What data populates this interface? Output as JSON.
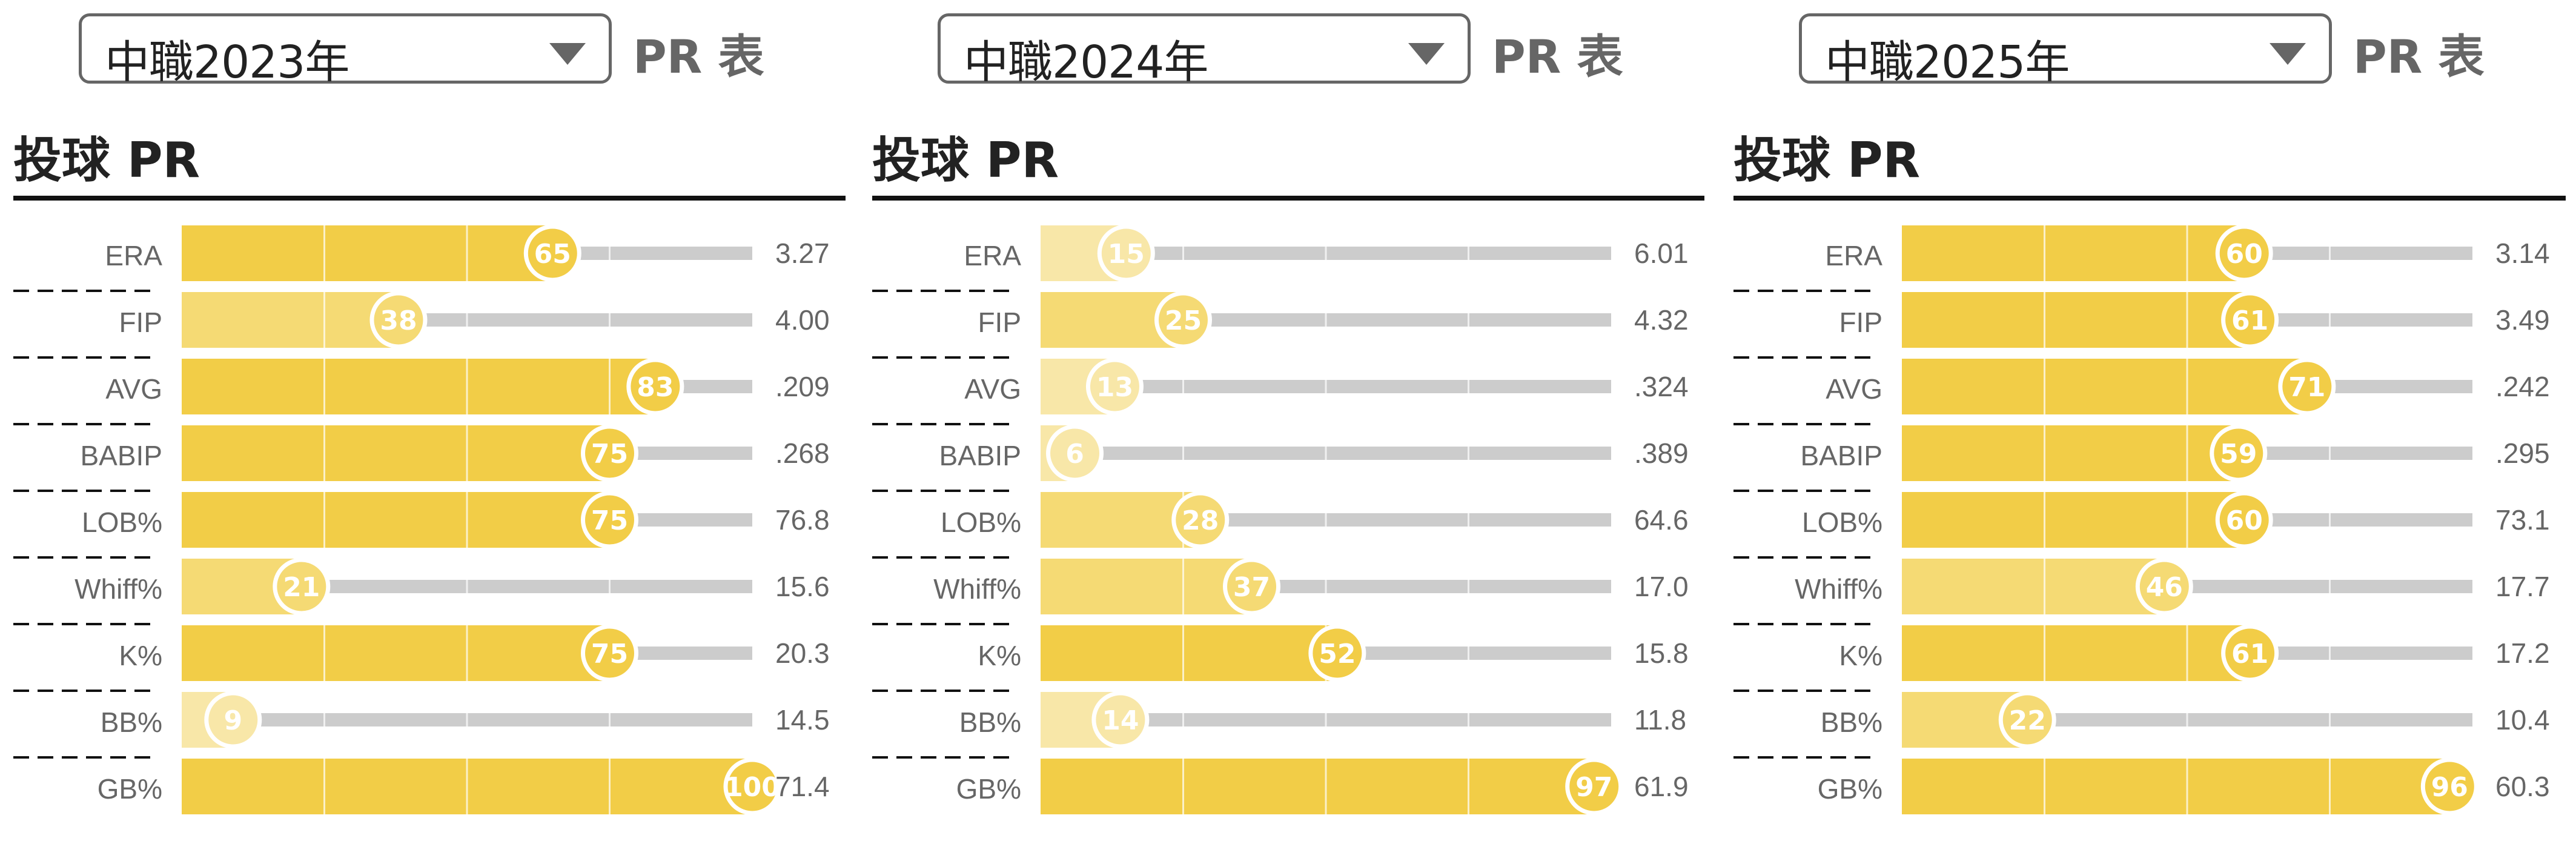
{
  "panels": [
    {
      "season_select": "中職2023年",
      "table_label": "PR 表",
      "section_title": "投球 PR",
      "chart_data": {
        "type": "bar",
        "categories": [
          "ERA",
          "FIP",
          "AVG",
          "BABIP",
          "LOB%",
          "Whiff%",
          "K%",
          "BB%",
          "GB%"
        ],
        "values": [
          65,
          38,
          83,
          75,
          75,
          21,
          75,
          9,
          100
        ],
        "stat_values": [
          "3.27",
          "4.00",
          ".209",
          ".268",
          "76.8",
          "15.6",
          "20.3",
          "14.5",
          "71.4"
        ],
        "ylim": [
          0,
          100
        ]
      }
    },
    {
      "season_select": "中職2024年",
      "table_label": "PR 表",
      "section_title": "投球 PR",
      "chart_data": {
        "type": "bar",
        "categories": [
          "ERA",
          "FIP",
          "AVG",
          "BABIP",
          "LOB%",
          "Whiff%",
          "K%",
          "BB%",
          "GB%"
        ],
        "values": [
          15,
          25,
          13,
          6,
          28,
          37,
          52,
          14,
          97
        ],
        "stat_values": [
          "6.01",
          "4.32",
          ".324",
          ".389",
          "64.6",
          "17.0",
          "15.8",
          "11.8",
          "61.9"
        ],
        "ylim": [
          0,
          100
        ]
      }
    },
    {
      "season_select": "中職2025年",
      "table_label": "PR 表",
      "section_title": "投球 PR",
      "chart_data": {
        "type": "bar",
        "categories": [
          "ERA",
          "FIP",
          "AVG",
          "BABIP",
          "LOB%",
          "Whiff%",
          "K%",
          "BB%",
          "GB%"
        ],
        "values": [
          60,
          61,
          71,
          59,
          60,
          46,
          61,
          22,
          96
        ],
        "stat_values": [
          "3.14",
          "3.49",
          ".242",
          ".295",
          "73.1",
          "17.7",
          "17.2",
          "10.4",
          "60.3"
        ],
        "ylim": [
          0,
          100
        ]
      }
    }
  ],
  "colors": {
    "pr_high": "#f2cd47",
    "pr_mid": "#f5da74",
    "pr_low": "#f8e7a8",
    "track": "#cccccc",
    "rule": "#111111"
  }
}
